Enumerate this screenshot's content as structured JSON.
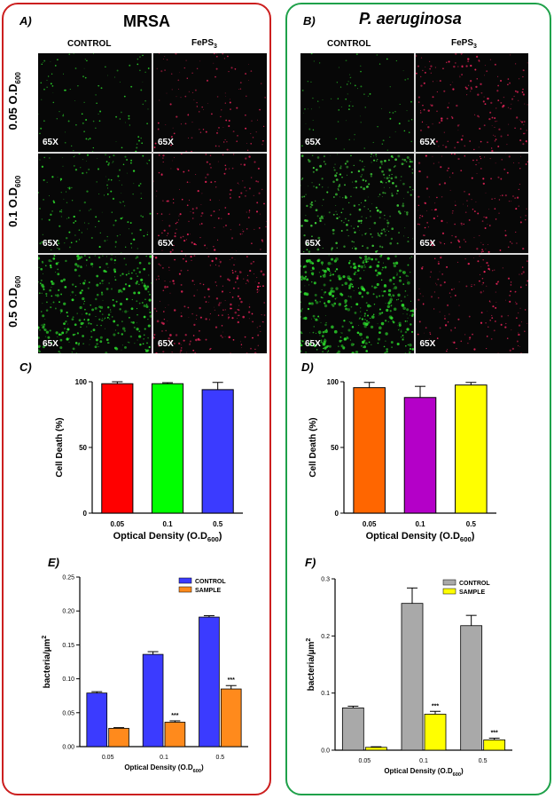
{
  "groups": [
    {
      "panel_label": "A)",
      "title": "MRSA",
      "col_left": "CONTROL",
      "col_right_main": "FePS",
      "col_right_sub": "3",
      "magnification": "65X",
      "micro": [
        {
          "control": {
            "color": "#2bd62b",
            "density": 0.15
          },
          "treated": {
            "color": "#e8245a",
            "density": 0.2
          }
        },
        {
          "control": {
            "color": "#2bd62b",
            "density": 0.3
          },
          "treated": {
            "color": "#e8245a",
            "density": 0.3
          }
        },
        {
          "control": {
            "color": "#2bd62b",
            "density": 0.75
          },
          "treated": {
            "color": "#e8245a",
            "density": 0.45
          }
        }
      ]
    },
    {
      "panel_label": "B)",
      "title": "P. aeruginosa",
      "col_left": "CONTROL",
      "col_right_main": "FePS",
      "col_right_sub": "3",
      "magnification": "65X",
      "micro": [
        {
          "control": {
            "color": "#2bd62b",
            "density": 0.12
          },
          "treated": {
            "color": "#e8245a",
            "density": 0.35
          }
        },
        {
          "control": {
            "color": "#3fd33a",
            "density": 0.6
          },
          "treated": {
            "color": "#e8245a",
            "density": 0.3
          }
        },
        {
          "control": {
            "color": "#2bd62b",
            "density": 0.95
          },
          "treated": {
            "color": "#e8245a",
            "density": 0.3
          }
        }
      ]
    }
  ],
  "row_labels": [
    {
      "main": "0.05 O.D",
      "sub": "600"
    },
    {
      "main": "0.1 O.D",
      "sub": "600"
    },
    {
      "main": "0.5 O.D",
      "sub": "600"
    }
  ],
  "chart_data": [
    {
      "panel_label": "C)",
      "type": "bar",
      "categories": [
        "0.05",
        "0.1",
        "0.5"
      ],
      "values": [
        98.5,
        98.5,
        94
      ],
      "errors": [
        1.5,
        0.8,
        5.5
      ],
      "colors": [
        "#ff0000",
        "#00ff00",
        "#3b3bff"
      ],
      "ylim": [
        0,
        100
      ],
      "yticks": [
        0,
        50,
        100
      ],
      "ylabel": "Cell Death (%)",
      "xlabel_main": "Optical Density (O.D",
      "xlabel_sub": "600",
      "xlabel_end": ")"
    },
    {
      "panel_label": "D)",
      "type": "bar",
      "categories": [
        "0.05",
        "0.1",
        "0.5"
      ],
      "values": [
        95.5,
        88,
        97.5
      ],
      "errors": [
        4,
        8.5,
        2
      ],
      "colors": [
        "#ff6600",
        "#b400c8",
        "#ffff00"
      ],
      "ylim": [
        0,
        100
      ],
      "yticks": [
        0,
        50,
        100
      ],
      "ylabel": "Cell Death (%)",
      "xlabel_main": "Optical Density (O.D",
      "xlabel_sub": "600",
      "xlabel_end": ")"
    },
    {
      "panel_label": "E)",
      "type": "bar",
      "categories": [
        "0.05",
        "0.1",
        "0.5"
      ],
      "series": [
        {
          "name": "CONTROL",
          "color": "#3b3bff",
          "values": [
            0.079,
            0.136,
            0.191
          ],
          "errors": [
            0.002,
            0.004,
            0.002
          ]
        },
        {
          "name": "SAMPLE",
          "color": "#ff8a1c",
          "values": [
            0.027,
            0.036,
            0.085
          ],
          "errors": [
            0.001,
            0.002,
            0.005
          ]
        }
      ],
      "significance": [
        "",
        "***",
        "***"
      ],
      "ylim": [
        0,
        0.25
      ],
      "yticks": [
        0.0,
        0.05,
        0.1,
        0.15,
        0.2,
        0.25
      ],
      "ytick_labels": [
        "0.00",
        "0.05",
        "0.10",
        "0.15",
        "0.20",
        "0.25"
      ],
      "ylabel_main": "bacteria/µm",
      "ylabel_sup": "2",
      "xlabel_main": "Optical Density (O.D",
      "xlabel_sub": "600",
      "xlabel_end": ")",
      "legend": "top-right"
    },
    {
      "panel_label": "F)",
      "type": "bar",
      "categories": [
        "0.05",
        "0.1",
        "0.5"
      ],
      "series": [
        {
          "name": "CONTROL",
          "color": "#a9a9a9",
          "values": [
            0.074,
            0.257,
            0.218
          ],
          "errors": [
            0.003,
            0.027,
            0.018
          ]
        },
        {
          "name": "SAMPLE",
          "color": "#ffff00",
          "values": [
            0.005,
            0.063,
            0.018
          ],
          "errors": [
            0.001,
            0.005,
            0.003
          ]
        }
      ],
      "significance": [
        "",
        "***",
        "***"
      ],
      "ylim": [
        0,
        0.3
      ],
      "yticks": [
        0.0,
        0.1,
        0.2,
        0.3
      ],
      "ytick_labels": [
        "0.0",
        "0.1",
        "0.2",
        "0.3"
      ],
      "ylabel_main": "bacteria/µm",
      "ylabel_sup": "2",
      "xlabel_main": "Optical Density (O.D",
      "xlabel_sub": "600",
      "xlabel_end": ")",
      "legend": "top-right"
    }
  ]
}
